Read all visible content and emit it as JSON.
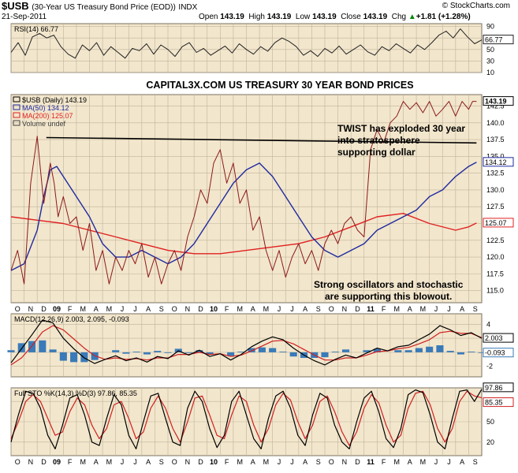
{
  "header": {
    "symbol": "$USB",
    "description": "(30-Year US Treasury Bond Price (EOD))",
    "exchange": "INDX",
    "brand": "© StockCharts.com",
    "date": "21-Sep-2011",
    "open_label": "Open",
    "open": "143.19",
    "high_label": "High",
    "high": "143.19",
    "low_label": "Low",
    "low": "143.19",
    "close_label": "Close",
    "close": "143.19",
    "chg_label": "Chg",
    "chg": "+1.81 (+1.28%)",
    "chg_arrow": "▲"
  },
  "colors": {
    "pane_bg": "#f2e6cc",
    "grid": "#bfb39c",
    "price": "#8b1a1a",
    "ma50": "#1f2aa0",
    "ma200": "#e02020",
    "macd_hist": "#3a7ab8",
    "resistance": "#000000"
  },
  "chart_data": [
    {
      "type": "line",
      "panel": "rsi",
      "legend": "RSI(14) 66.77",
      "y_ticks": [
        90,
        70,
        50,
        30,
        10
      ],
      "ylim": [
        10,
        95
      ],
      "last_value_label": "66.77",
      "series": [
        {
          "name": "RSI(14)",
          "values": [
            45,
            62,
            40,
            72,
            78,
            70,
            75,
            55,
            42,
            35,
            58,
            48,
            62,
            40,
            55,
            45,
            35,
            52,
            48,
            60,
            42,
            58,
            50,
            38,
            55,
            62,
            45,
            52,
            40,
            48,
            56,
            44,
            60,
            50,
            42,
            55,
            47,
            62,
            70,
            64,
            55,
            40,
            48,
            38,
            52,
            44,
            56,
            42,
            50,
            58,
            46,
            40,
            55,
            48,
            60,
            52,
            44,
            58,
            50,
            62,
            75,
            82,
            70,
            86,
            72,
            60,
            66.77
          ]
        }
      ]
    },
    {
      "type": "line",
      "panel": "price",
      "title": "CAPITAL3X.COM US TREASURY 30 YEAR BOND PRICES",
      "legend": [
        "$USB (Daily) 143.19",
        "MA(50) 134.12",
        "MA(200) 125.07",
        "Volume undef"
      ],
      "x_labels": [
        "O",
        "N",
        "D",
        "09",
        "F",
        "M",
        "A",
        "M",
        "J",
        "J",
        "A",
        "S",
        "O",
        "N",
        "D",
        "10",
        "F",
        "M",
        "A",
        "M",
        "J",
        "J",
        "A",
        "S",
        "O",
        "N",
        "D",
        "11",
        "F",
        "M",
        "A",
        "M",
        "J",
        "J",
        "A",
        "S"
      ],
      "y_ticks": [
        115.0,
        117.5,
        120.0,
        122.5,
        125.0,
        127.5,
        130.0,
        132.5,
        135.0,
        137.5,
        140.0,
        142.5
      ],
      "ylim": [
        113.2,
        144.2
      ],
      "last_value_labels": [
        "143.19",
        "134.12",
        "125.07"
      ],
      "annotations": [
        "TWIST has exploded 30 year",
        "into stratospehere",
        "supporting dollar",
        "Strong oscillators and stochastic",
        "are supporting this blowout."
      ],
      "resistance_line": {
        "from": [
          2.7,
          137.8
        ],
        "to": [
          35.6,
          137.0
        ]
      },
      "series": [
        {
          "name": "$USB",
          "x": [
            0,
            0.5,
            1,
            1.5,
            2,
            2.5,
            3,
            3.3,
            3.6,
            4,
            4.5,
            5,
            5.5,
            6,
            6.5,
            7,
            7.5,
            8,
            8.5,
            9,
            9.5,
            10,
            10.5,
            11,
            11.5,
            12,
            12.5,
            13,
            13.5,
            14,
            14.5,
            15,
            15.5,
            16,
            16.5,
            17,
            17.5,
            18,
            18.5,
            19,
            19.5,
            20,
            20.5,
            21,
            21.5,
            22,
            22.5,
            23,
            23.5,
            24,
            24.5,
            25,
            25.5,
            26,
            26.5,
            27,
            27.5,
            28,
            28.5,
            29,
            29.5,
            30,
            30.5,
            31,
            31.5,
            32,
            32.5,
            33,
            33.5,
            34,
            34.5,
            35,
            35.3,
            35.6
          ],
          "values": [
            118,
            121,
            116,
            131,
            138,
            128,
            134,
            131,
            126,
            129,
            125,
            126,
            121,
            125,
            118,
            121,
            116,
            120,
            118,
            121,
            119,
            122,
            117,
            120,
            116,
            119,
            121,
            118,
            123,
            126,
            130,
            128,
            134,
            136,
            131,
            134,
            128,
            130,
            124,
            126,
            121,
            118,
            121,
            117,
            120,
            122,
            119,
            121,
            118,
            122,
            124,
            122,
            125,
            126,
            124,
            123,
            136,
            139,
            137,
            140,
            141,
            143.19,
            142,
            143,
            141.5,
            143.19,
            141,
            142,
            143.19,
            141,
            143.19,
            142,
            143.19,
            143.19
          ]
        },
        {
          "name": "MA(50)",
          "x": [
            0,
            1,
            2,
            2.5,
            3,
            3.5,
            4,
            5,
            6,
            7,
            8,
            9,
            10,
            11,
            12,
            13,
            14,
            15,
            16,
            17,
            18,
            19,
            20,
            21,
            22,
            23,
            24,
            25,
            26,
            27,
            28,
            29,
            30,
            31,
            32,
            33,
            34,
            35,
            35.6
          ],
          "values": [
            118,
            119,
            124,
            129,
            133,
            133.5,
            132,
            129,
            126,
            122,
            120,
            120,
            121,
            120,
            119,
            120,
            122,
            125,
            128,
            131,
            133,
            134,
            132,
            129,
            126,
            123,
            121,
            120,
            121,
            122,
            124,
            125,
            126,
            127,
            129,
            130,
            132,
            133.5,
            134.12
          ]
        },
        {
          "name": "MA(200)",
          "x": [
            0,
            2,
            4,
            6,
            8,
            10,
            12,
            14,
            16,
            18,
            20,
            22,
            24,
            26,
            28,
            30,
            32,
            34,
            35,
            35.6
          ],
          "values": [
            126,
            125.5,
            125,
            124,
            123,
            122,
            121,
            120.5,
            120.5,
            121,
            121.5,
            122,
            123,
            124.5,
            126,
            126.5,
            125,
            124,
            124.5,
            125.07
          ]
        }
      ]
    },
    {
      "type": "line",
      "panel": "macd",
      "legend": "MACD(12,26,9) 2.003, 2.095, -0.093",
      "y_ticks": [
        4,
        2,
        0,
        -2
      ],
      "ylim": [
        -3.5,
        5.5
      ],
      "last_value_labels": [
        "2.003",
        "-0.093"
      ],
      "series": [
        {
          "name": "MACD",
          "values": [
            -1.5,
            0.5,
            2.5,
            4.6,
            4.2,
            2.0,
            0.5,
            -0.8,
            -1.6,
            -1.0,
            -0.5,
            -1.2,
            -0.8,
            -1.4,
            -0.6,
            -0.9,
            0.2,
            -0.4,
            0.3,
            -0.6,
            -0.2,
            -1.1,
            -0.3,
            0.8,
            1.6,
            2.2,
            1.8,
            0.6,
            -0.4,
            -1.2,
            -1.8,
            -1.0,
            -0.4,
            -0.8,
            -0.1,
            0.6,
            0.2,
            0.8,
            1.0,
            1.8,
            2.6,
            3.8,
            3.2,
            2.4,
            2.8,
            2.003
          ]
        },
        {
          "name": "Signal",
          "values": [
            -1.8,
            -0.8,
            0.9,
            2.9,
            3.8,
            3.2,
            1.9,
            0.6,
            -0.5,
            -1.0,
            -0.8,
            -1.0,
            -0.9,
            -1.1,
            -0.8,
            -0.8,
            -0.3,
            -0.3,
            0.0,
            -0.3,
            -0.2,
            -0.6,
            -0.4,
            0.2,
            0.9,
            1.6,
            1.7,
            1.2,
            0.4,
            -0.4,
            -1.1,
            -1.1,
            -0.8,
            -0.8,
            -0.4,
            0.1,
            0.2,
            0.5,
            0.7,
            1.2,
            1.8,
            2.8,
            3.0,
            2.7,
            2.7,
            2.095
          ]
        }
      ]
    },
    {
      "type": "line",
      "panel": "stochastic",
      "legend": "Full STO %K(14,3) %D(3) 97.86, 85.35",
      "y_ticks": [
        80,
        50,
        20
      ],
      "ylim": [
        0,
        100
      ],
      "last_value_labels": [
        "97.86",
        "85.35"
      ],
      "series": [
        {
          "name": "%K",
          "values": [
            20,
            60,
            95,
            92,
            70,
            30,
            10,
            45,
            85,
            90,
            60,
            20,
            15,
            55,
            90,
            75,
            30,
            10,
            50,
            88,
            92,
            55,
            20,
            15,
            70,
            95,
            80,
            40,
            12,
            30,
            80,
            95,
            60,
            25,
            10,
            55,
            88,
            95,
            70,
            30,
            15,
            60,
            92,
            85,
            45,
            20,
            10,
            50,
            85,
            95,
            65,
            25,
            12,
            40,
            90,
            97,
            93,
            60,
            20,
            10,
            55,
            95,
            97,
            80,
            97.86
          ]
        },
        {
          "name": "%D",
          "values": [
            25,
            50,
            80,
            90,
            80,
            55,
            30,
            35,
            65,
            85,
            75,
            45,
            25,
            40,
            75,
            80,
            55,
            25,
            35,
            70,
            88,
            70,
            40,
            20,
            50,
            85,
            88,
            60,
            30,
            25,
            60,
            88,
            80,
            45,
            20,
            40,
            75,
            92,
            82,
            50,
            25,
            45,
            80,
            88,
            65,
            35,
            15,
            35,
            70,
            90,
            78,
            45,
            20,
            30,
            70,
            92,
            95,
            75,
            40,
            20,
            40,
            80,
            95,
            88,
            85.35
          ]
        }
      ]
    }
  ]
}
